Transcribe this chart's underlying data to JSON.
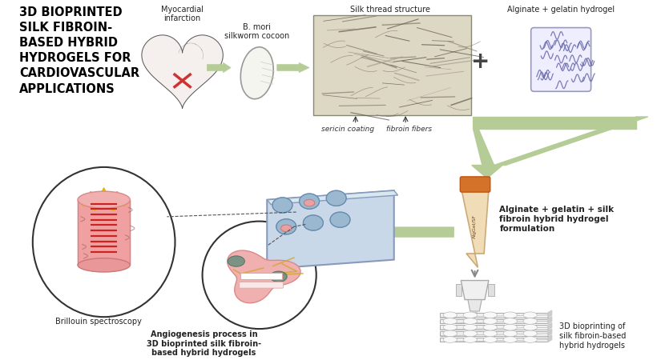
{
  "title": "3D BIOPRINTED\nSILK FIBROIN-\nBASED HYBRID\nHYDROGELS FOR\nCARDIOVASCULAR\nAPPLICATIONS",
  "title_color": "#000000",
  "title_fontsize": 10.5,
  "bg_color": "#ffffff",
  "labels": {
    "myocardial": "Myocardial\ninfarction",
    "cocoon": "B. mori\nsilkworm cocoon",
    "silk_thread": "Silk thread structure",
    "alginate_gelatin": "Alginate + gelatin hydrogel",
    "sericin": "sericin coating",
    "fibroin": "fibroin fibers",
    "brillouin": "Brillouin spectroscopy",
    "angiogenesis": "Angiogenesis process in\n3D bioprinted silk fibroin-\nbased hybrid hydrogels",
    "formulation": "Alginate + gelatin + silk\nfibroin hybrid hydrogel\nformulation",
    "bioprinting": "3D bioprinting of\nsilk fibroin-based\nhybrid hydrogels"
  },
  "arrow_color": "#b5cc96",
  "dashed_color": "#555555",
  "label_fontsize": 7,
  "small_fontsize": 6.5
}
